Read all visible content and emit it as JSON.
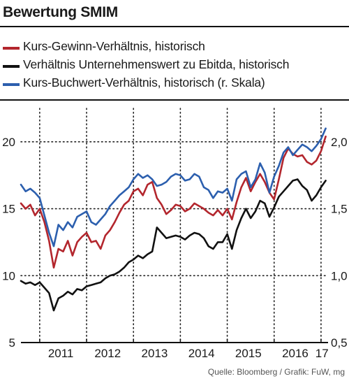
{
  "title": "Bewertung SMIM",
  "source": "Quelle: Bloomberg / Grafik: FuW, mg",
  "chart_data": {
    "type": "line",
    "title": "Bewertung SMIM",
    "x_labels": [
      "2011",
      "2012",
      "2013",
      "2014",
      "2015",
      "2016",
      "17"
    ],
    "x_range": [
      2010.6,
      2017.15
    ],
    "left_axis": {
      "ticks": [
        "5",
        "10",
        "15",
        "20"
      ],
      "range": [
        5,
        22.5
      ]
    },
    "right_axis": {
      "ticks": [
        "0,5",
        "1,0",
        "1,5",
        "2,0"
      ],
      "range": [
        0.5,
        2.25
      ]
    },
    "grid": "dotted-vertical-at-year-starts-and-horizontal-at-10-15-20",
    "legend_position": "top",
    "series": [
      {
        "name": "Kurs-Gewinn-Verhältnis, historisch",
        "color": "#b3262d",
        "axis": "left",
        "x": [
          2010.6,
          2010.7,
          2010.8,
          2010.9,
          2011.0,
          2011.1,
          2011.2,
          2011.3,
          2011.4,
          2011.5,
          2011.6,
          2011.7,
          2011.8,
          2011.9,
          2012.0,
          2012.1,
          2012.2,
          2012.3,
          2012.4,
          2012.5,
          2012.6,
          2012.7,
          2012.8,
          2012.9,
          2013.0,
          2013.1,
          2013.2,
          2013.3,
          2013.4,
          2013.5,
          2013.6,
          2013.7,
          2013.8,
          2013.9,
          2014.0,
          2014.1,
          2014.2,
          2014.3,
          2014.4,
          2014.5,
          2014.6,
          2014.7,
          2014.8,
          2014.9,
          2015.0,
          2015.1,
          2015.2,
          2015.3,
          2015.4,
          2015.5,
          2015.6,
          2015.7,
          2015.8,
          2015.9,
          2016.0,
          2016.1,
          2016.2,
          2016.3,
          2016.4,
          2016.5,
          2016.6,
          2016.7,
          2016.8,
          2016.9,
          2017.0,
          2017.1
        ],
        "values": [
          15.4,
          15.0,
          15.3,
          14.5,
          15.0,
          14.0,
          12.6,
          10.6,
          12.0,
          11.8,
          12.6,
          11.5,
          12.5,
          12.9,
          13.2,
          12.5,
          12.6,
          12.0,
          13.0,
          13.4,
          14.0,
          14.7,
          15.3,
          15.6,
          16.3,
          16.5,
          16.0,
          16.8,
          17.0,
          15.8,
          15.3,
          14.6,
          14.9,
          15.3,
          15.2,
          14.8,
          15.0,
          15.4,
          15.2,
          15.0,
          14.7,
          14.5,
          14.9,
          14.5,
          15.0,
          14.2,
          15.5,
          16.6,
          17.3,
          16.3,
          17.0,
          17.6,
          17.0,
          16.2,
          15.7,
          17.2,
          18.8,
          19.5,
          19.1,
          18.9,
          19.0,
          18.5,
          18.3,
          18.6,
          19.3,
          20.4
        ]
      },
      {
        "name": "Verhältnis Unternehmenswert zu Ebitda, historisch",
        "color": "#111111",
        "axis": "left",
        "x": [
          2010.6,
          2010.7,
          2010.8,
          2010.9,
          2011.0,
          2011.1,
          2011.2,
          2011.3,
          2011.4,
          2011.5,
          2011.6,
          2011.7,
          2011.8,
          2011.9,
          2012.0,
          2012.1,
          2012.2,
          2012.3,
          2012.4,
          2012.5,
          2012.6,
          2012.7,
          2012.8,
          2012.9,
          2013.0,
          2013.1,
          2013.2,
          2013.3,
          2013.4,
          2013.5,
          2013.6,
          2013.7,
          2013.8,
          2013.9,
          2014.0,
          2014.1,
          2014.2,
          2014.3,
          2014.4,
          2014.5,
          2014.6,
          2014.7,
          2014.8,
          2014.9,
          2015.0,
          2015.1,
          2015.2,
          2015.3,
          2015.4,
          2015.5,
          2015.6,
          2015.7,
          2015.8,
          2015.9,
          2016.0,
          2016.1,
          2016.2,
          2016.3,
          2016.4,
          2016.5,
          2016.6,
          2016.7,
          2016.8,
          2016.9,
          2017.0,
          2017.1
        ],
        "values": [
          9.6,
          9.4,
          9.5,
          9.3,
          9.5,
          9.1,
          8.7,
          7.4,
          8.3,
          8.5,
          8.8,
          8.6,
          9.0,
          8.9,
          9.2,
          9.3,
          9.4,
          9.5,
          9.8,
          10.0,
          10.1,
          10.3,
          10.6,
          11.0,
          11.2,
          11.5,
          11.3,
          11.6,
          11.8,
          13.6,
          13.2,
          12.8,
          12.9,
          13.0,
          12.9,
          12.7,
          13.0,
          13.2,
          13.1,
          12.8,
          12.2,
          12.0,
          12.5,
          12.5,
          13.1,
          12.0,
          13.4,
          14.3,
          15.0,
          14.3,
          14.8,
          15.6,
          15.4,
          14.4,
          15.1,
          15.9,
          16.3,
          16.7,
          17.1,
          17.2,
          16.7,
          16.4,
          15.6,
          16.0,
          16.6,
          17.1
        ]
      },
      {
        "name": "Kurs-Buchwert-Verhältnis, historisch (r. Skala)",
        "color": "#2c5fae",
        "axis": "right",
        "x": [
          2010.6,
          2010.7,
          2010.8,
          2010.9,
          2011.0,
          2011.1,
          2011.2,
          2011.3,
          2011.4,
          2011.5,
          2011.6,
          2011.7,
          2011.8,
          2011.9,
          2012.0,
          2012.1,
          2012.2,
          2012.3,
          2012.4,
          2012.5,
          2012.6,
          2012.7,
          2012.8,
          2012.9,
          2013.0,
          2013.1,
          2013.2,
          2013.3,
          2013.4,
          2013.5,
          2013.6,
          2013.7,
          2013.8,
          2013.9,
          2014.0,
          2014.1,
          2014.2,
          2014.3,
          2014.4,
          2014.5,
          2014.6,
          2014.7,
          2014.8,
          2014.9,
          2015.0,
          2015.1,
          2015.2,
          2015.3,
          2015.4,
          2015.5,
          2015.6,
          2015.7,
          2015.8,
          2015.9,
          2016.0,
          2016.1,
          2016.2,
          2016.3,
          2016.4,
          2016.5,
          2016.6,
          2016.7,
          2016.8,
          2016.9,
          2017.0,
          2017.1
        ],
        "values": [
          1.68,
          1.63,
          1.65,
          1.62,
          1.58,
          1.45,
          1.32,
          1.22,
          1.38,
          1.34,
          1.4,
          1.36,
          1.44,
          1.46,
          1.48,
          1.4,
          1.38,
          1.42,
          1.46,
          1.52,
          1.56,
          1.6,
          1.63,
          1.66,
          1.72,
          1.76,
          1.73,
          1.75,
          1.72,
          1.67,
          1.68,
          1.7,
          1.74,
          1.76,
          1.75,
          1.71,
          1.72,
          1.76,
          1.74,
          1.66,
          1.64,
          1.58,
          1.63,
          1.62,
          1.65,
          1.56,
          1.72,
          1.76,
          1.78,
          1.66,
          1.72,
          1.84,
          1.77,
          1.62,
          1.74,
          1.82,
          1.92,
          1.96,
          1.9,
          1.94,
          1.98,
          1.96,
          1.93,
          1.97,
          2.02,
          2.1
        ]
      }
    ]
  }
}
